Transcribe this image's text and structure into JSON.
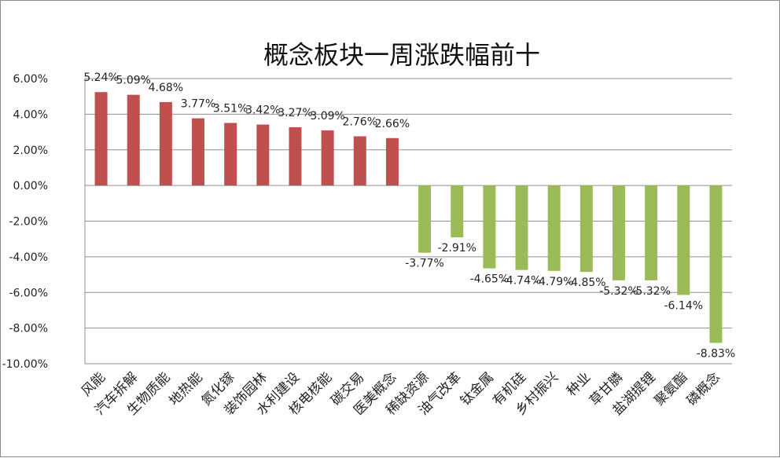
{
  "chart_data": {
    "type": "bar",
    "title": "概念板块一周涨跌幅前十",
    "categories": [
      "风能",
      "汽车拆解",
      "生物质能",
      "地热能",
      "氮化镓",
      "装饰园林",
      "水利建设",
      "核电核能",
      "碳交易",
      "医美概念",
      "稀缺资源",
      "油气改革",
      "钛金属",
      "有机硅",
      "乡村振兴",
      "种业",
      "草甘膦",
      "盐湖提锂",
      "聚氨酯",
      "磷概念"
    ],
    "values": [
      5.24,
      5.09,
      4.68,
      3.77,
      3.51,
      3.42,
      3.27,
      3.09,
      2.76,
      2.66,
      -3.77,
      -2.91,
      -4.65,
      -4.74,
      -4.79,
      -4.85,
      -5.32,
      -5.32,
      -6.14,
      -8.83
    ],
    "data_labels": [
      "5.24%",
      "5.09%",
      "4.68%",
      "3.77%",
      "3.51%",
      "3.42%",
      "3.27%",
      "3.09%",
      "2.76%",
      "2.66%",
      "-3.77%",
      "-2.91%",
      "-4.65%",
      "-4.74%",
      "-4.79%",
      "-4.85%",
      "-5.32%",
      "-5.32%",
      "-6.14%",
      "-8.83%"
    ],
    "y_ticks": [
      "6.00%",
      "4.00%",
      "2.00%",
      "0.00%",
      "-2.00%",
      "-4.00%",
      "-6.00%",
      "-8.00%",
      "-10.00%"
    ],
    "ylim": [
      -10,
      6
    ],
    "ylabel": "",
    "xlabel": "",
    "grid": true,
    "legend": "none",
    "colors": {
      "positive": "#c0504d",
      "negative": "#9bbb59",
      "grid": "#8f8f8f",
      "axis": "#8f8f8f"
    }
  }
}
